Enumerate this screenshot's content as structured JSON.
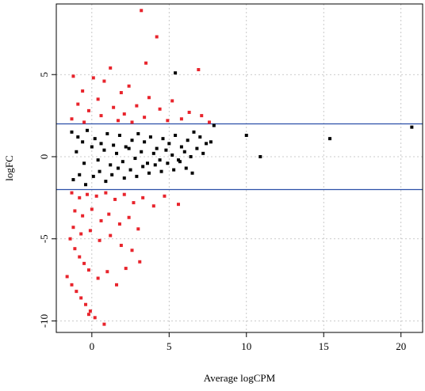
{
  "chart_data": {
    "type": "scatter",
    "title": "",
    "xlabel": "Average logCPM",
    "ylabel": "logFC",
    "xlim": [
      -2.3,
      21.4
    ],
    "ylim": [
      -10.7,
      9.3
    ],
    "x_ticks": [
      0,
      5,
      10,
      15,
      20
    ],
    "y_ticks": [
      -10,
      -5,
      0,
      5
    ],
    "grid": true,
    "legend": "none",
    "thresholds": [
      {
        "axis": "y",
        "value": 2,
        "color": "#2b4fa8"
      },
      {
        "axis": "y",
        "value": -2,
        "color": "#2b4fa8"
      }
    ],
    "colors": {
      "significant": "#e8242c",
      "not_significant": "#000000",
      "grid": "#bbbbbb",
      "threshold_line": "#2b4fa8"
    },
    "series": [
      {
        "color": "#000000",
        "points": [
          [
            -1.3,
            1.5
          ],
          [
            -0.9,
            1.2
          ],
          [
            -0.6,
            0.9
          ],
          [
            -0.3,
            1.6
          ],
          [
            0.2,
            1.1
          ],
          [
            0.6,
            0.8
          ],
          [
            1.0,
            1.4
          ],
          [
            1.4,
            0.7
          ],
          [
            1.8,
            1.3
          ],
          [
            2.2,
            0.6
          ],
          [
            2.6,
            1.0
          ],
          [
            3.0,
            1.4
          ],
          [
            3.4,
            0.9
          ],
          [
            3.8,
            1.2
          ],
          [
            4.2,
            0.5
          ],
          [
            4.6,
            1.1
          ],
          [
            5.0,
            0.8
          ],
          [
            5.4,
            1.3
          ],
          [
            5.8,
            0.6
          ],
          [
            6.2,
            1.0
          ],
          [
            6.6,
            1.5
          ],
          [
            7.0,
            1.2
          ],
          [
            7.4,
            0.8
          ],
          [
            7.9,
            1.9
          ],
          [
            -1.2,
            -1.4
          ],
          [
            -0.8,
            -1.1
          ],
          [
            -0.4,
            -1.7
          ],
          [
            0.1,
            -1.2
          ],
          [
            0.5,
            -0.9
          ],
          [
            0.9,
            -1.5
          ],
          [
            1.3,
            -1.1
          ],
          [
            1.7,
            -0.7
          ],
          [
            2.1,
            -1.3
          ],
          [
            2.5,
            -0.8
          ],
          [
            2.9,
            -1.2
          ],
          [
            3.3,
            -0.6
          ],
          [
            3.7,
            -1.0
          ],
          [
            4.1,
            -0.5
          ],
          [
            4.5,
            -0.9
          ],
          [
            4.9,
            -0.4
          ],
          [
            5.3,
            -0.8
          ],
          [
            5.7,
            -0.3
          ],
          [
            6.1,
            -0.7
          ],
          [
            6.5,
            -1.0
          ],
          [
            -1.0,
            0.3
          ],
          [
            -0.5,
            -0.4
          ],
          [
            0.0,
            0.6
          ],
          [
            0.4,
            -0.2
          ],
          [
            0.8,
            0.4
          ],
          [
            1.2,
            -0.5
          ],
          [
            1.6,
            0.2
          ],
          [
            2.0,
            -0.3
          ],
          [
            2.4,
            0.5
          ],
          [
            2.8,
            -0.1
          ],
          [
            3.2,
            0.3
          ],
          [
            3.6,
            -0.4
          ],
          [
            4.0,
            0.2
          ],
          [
            4.4,
            -0.2
          ],
          [
            4.8,
            0.4
          ],
          [
            5.2,
            0.1
          ],
          [
            5.6,
            -0.2
          ],
          [
            6.0,
            0.3
          ],
          [
            6.4,
            0.0
          ],
          [
            6.8,
            0.5
          ],
          [
            7.2,
            0.2
          ],
          [
            7.7,
            0.9
          ],
          [
            5.4,
            5.1
          ],
          [
            10.0,
            1.3
          ],
          [
            10.9,
            0.0
          ],
          [
            15.4,
            1.1
          ],
          [
            20.7,
            1.8
          ]
        ]
      },
      {
        "color": "#e8242c",
        "points": [
          [
            3.2,
            8.9
          ],
          [
            4.2,
            7.3
          ],
          [
            6.9,
            5.3
          ],
          [
            3.5,
            5.7
          ],
          [
            1.2,
            5.4
          ],
          [
            0.1,
            4.8
          ],
          [
            -1.2,
            4.9
          ],
          [
            0.8,
            4.6
          ],
          [
            2.4,
            4.3
          ],
          [
            -0.6,
            4.0
          ],
          [
            1.9,
            3.9
          ],
          [
            3.7,
            3.6
          ],
          [
            0.4,
            3.5
          ],
          [
            5.2,
            3.4
          ],
          [
            -0.9,
            3.2
          ],
          [
            2.9,
            3.1
          ],
          [
            1.4,
            3.0
          ],
          [
            4.4,
            2.9
          ],
          [
            -0.2,
            2.8
          ],
          [
            6.3,
            2.7
          ],
          [
            2.1,
            2.6
          ],
          [
            7.1,
            2.5
          ],
          [
            0.6,
            2.5
          ],
          [
            3.4,
            2.4
          ],
          [
            -1.3,
            2.3
          ],
          [
            5.8,
            2.3
          ],
          [
            1.7,
            2.2
          ],
          [
            4.9,
            2.2
          ],
          [
            -0.5,
            2.1
          ],
          [
            2.6,
            2.1
          ],
          [
            7.6,
            2.1
          ],
          [
            -1.3,
            -2.2
          ],
          [
            -0.8,
            -2.5
          ],
          [
            -0.3,
            -2.3
          ],
          [
            0.3,
            -2.4
          ],
          [
            0.9,
            -2.2
          ],
          [
            1.5,
            -2.6
          ],
          [
            2.1,
            -2.3
          ],
          [
            2.7,
            -2.8
          ],
          [
            3.3,
            -2.5
          ],
          [
            4.0,
            -3.0
          ],
          [
            4.7,
            -2.4
          ],
          [
            5.6,
            -2.9
          ],
          [
            -1.1,
            -3.3
          ],
          [
            -0.6,
            -3.6
          ],
          [
            0.0,
            -3.2
          ],
          [
            0.6,
            -3.9
          ],
          [
            1.1,
            -3.5
          ],
          [
            1.8,
            -4.1
          ],
          [
            2.4,
            -3.7
          ],
          [
            3.0,
            -4.4
          ],
          [
            -1.2,
            -4.3
          ],
          [
            -0.7,
            -4.7
          ],
          [
            -0.1,
            -4.5
          ],
          [
            0.5,
            -5.1
          ],
          [
            1.2,
            -4.8
          ],
          [
            1.9,
            -5.4
          ],
          [
            2.6,
            -5.7
          ],
          [
            3.1,
            -6.4
          ],
          [
            -1.4,
            -5.0
          ],
          [
            -1.1,
            -5.6
          ],
          [
            -0.8,
            -6.1
          ],
          [
            -0.5,
            -6.5
          ],
          [
            -0.2,
            -6.9
          ],
          [
            0.4,
            -7.4
          ],
          [
            1.0,
            -7.0
          ],
          [
            1.6,
            -7.8
          ],
          [
            2.2,
            -6.8
          ],
          [
            -1.6,
            -7.3
          ],
          [
            -1.3,
            -7.8
          ],
          [
            -1.0,
            -8.2
          ],
          [
            -0.7,
            -8.6
          ],
          [
            -0.4,
            -9.0
          ],
          [
            -0.1,
            -9.4
          ],
          [
            0.2,
            -9.8
          ],
          [
            0.8,
            -10.2
          ],
          [
            -0.2,
            -9.6
          ]
        ]
      }
    ]
  }
}
